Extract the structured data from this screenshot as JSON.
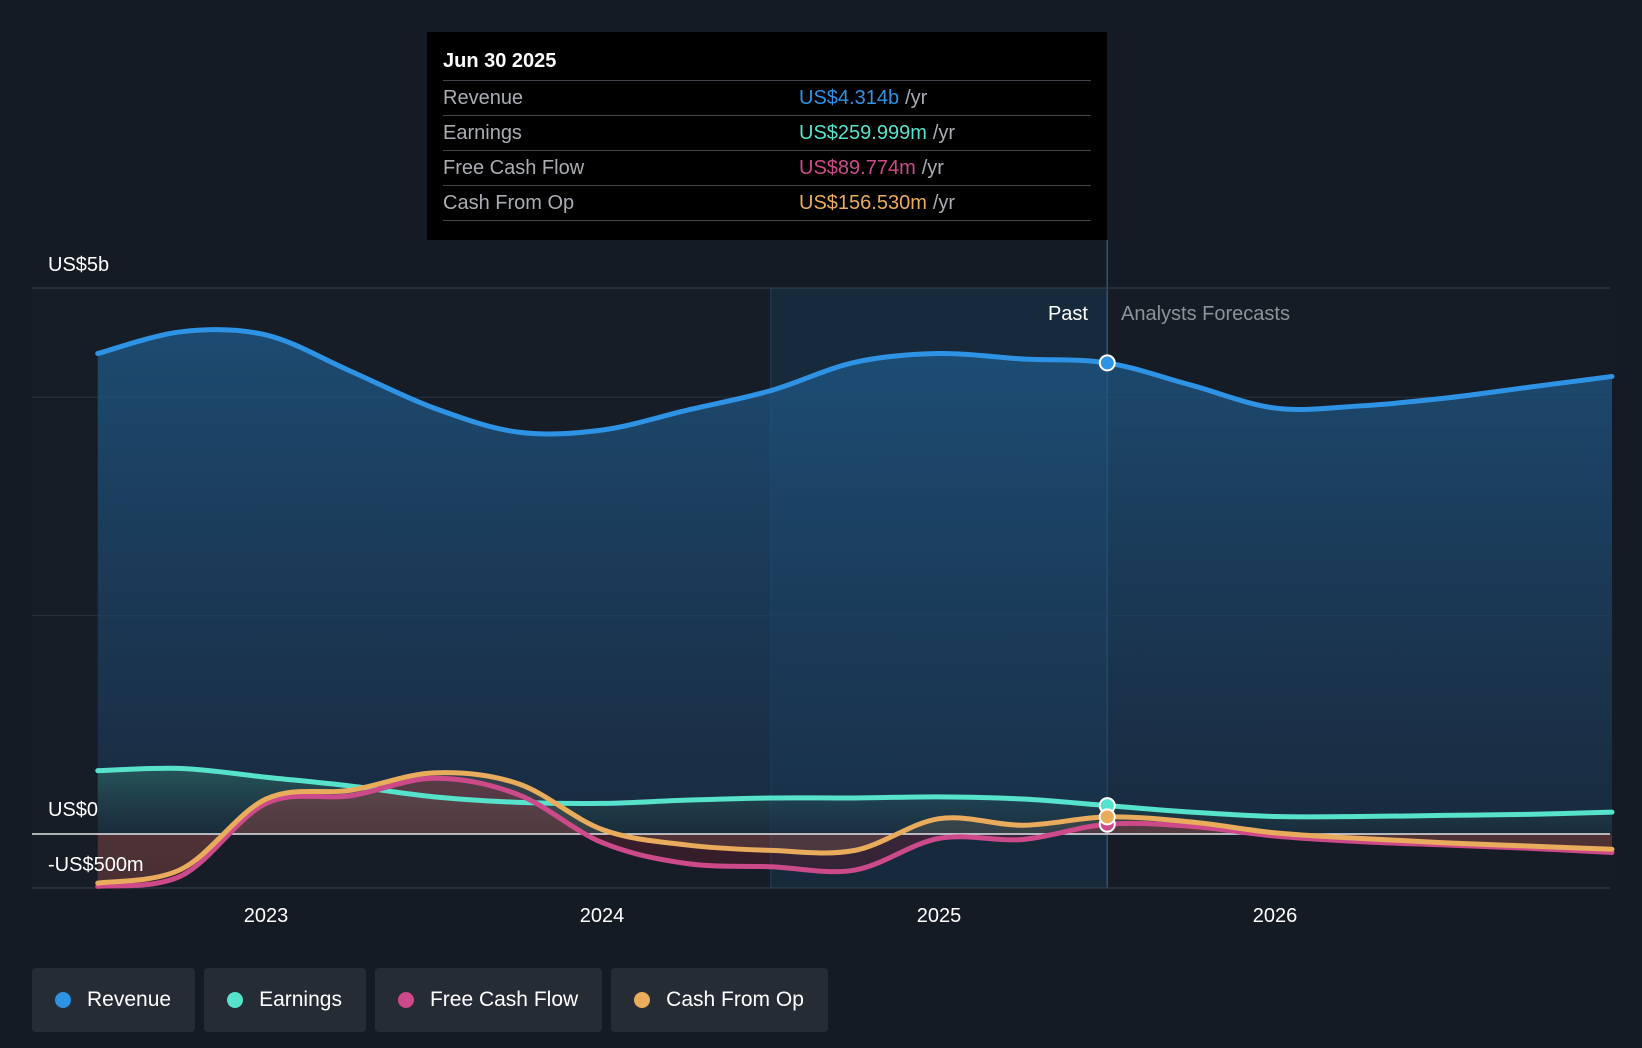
{
  "chart_data": {
    "type": "line",
    "title": "",
    "y_unit": "US$",
    "y_axis_labels": [
      "US$5b",
      "US$0",
      "-US$500m"
    ],
    "ylim": [
      -500,
      5000
    ],
    "x_ticks": [
      "2023",
      "2024",
      "2025",
      "2026"
    ],
    "period_labels": {
      "past": "Past",
      "forecast": "Analysts Forecasts"
    },
    "past_end": 2025.5,
    "highlight_start": 2024.5,
    "x_range": [
      2022.3,
      2027.0
    ],
    "series": [
      {
        "name": "Revenue",
        "color": "#2e93e4",
        "points": [
          [
            2022.5,
            4400
          ],
          [
            2022.75,
            4600
          ],
          [
            2023.0,
            4570
          ],
          [
            2023.25,
            4240
          ],
          [
            2023.5,
            3900
          ],
          [
            2023.75,
            3680
          ],
          [
            2024.0,
            3700
          ],
          [
            2024.25,
            3880
          ],
          [
            2024.5,
            4060
          ],
          [
            2024.75,
            4320
          ],
          [
            2025.0,
            4400
          ],
          [
            2025.25,
            4350
          ],
          [
            2025.5,
            4314
          ],
          [
            2025.75,
            4110
          ],
          [
            2026.0,
            3900
          ],
          [
            2026.25,
            3920
          ],
          [
            2026.5,
            3990
          ],
          [
            2026.75,
            4090
          ],
          [
            2027.0,
            4190
          ]
        ]
      },
      {
        "name": "Earnings",
        "color": "#57e2cc",
        "points": [
          [
            2022.5,
            580
          ],
          [
            2022.75,
            600
          ],
          [
            2023.0,
            520
          ],
          [
            2023.25,
            440
          ],
          [
            2023.5,
            340
          ],
          [
            2023.75,
            290
          ],
          [
            2024.0,
            280
          ],
          [
            2024.25,
            310
          ],
          [
            2024.5,
            330
          ],
          [
            2024.75,
            330
          ],
          [
            2025.0,
            340
          ],
          [
            2025.25,
            320
          ],
          [
            2025.5,
            260
          ],
          [
            2025.75,
            200
          ],
          [
            2026.0,
            160
          ],
          [
            2026.25,
            160
          ],
          [
            2026.5,
            170
          ],
          [
            2026.75,
            180
          ],
          [
            2027.0,
            200
          ]
        ]
      },
      {
        "name": "Free Cash Flow",
        "color": "#cc4a8a",
        "points": [
          [
            2022.5,
            -480
          ],
          [
            2022.75,
            -380
          ],
          [
            2023.0,
            280
          ],
          [
            2023.25,
            350
          ],
          [
            2023.5,
            510
          ],
          [
            2023.75,
            360
          ],
          [
            2024.0,
            -80
          ],
          [
            2024.25,
            -270
          ],
          [
            2024.5,
            -300
          ],
          [
            2024.75,
            -330
          ],
          [
            2025.0,
            -40
          ],
          [
            2025.25,
            -50
          ],
          [
            2025.5,
            89.774
          ],
          [
            2025.75,
            70
          ],
          [
            2026.0,
            -20
          ],
          [
            2026.25,
            -70
          ],
          [
            2026.5,
            -100
          ],
          [
            2026.75,
            -130
          ],
          [
            2027.0,
            -170
          ]
        ]
      },
      {
        "name": "Cash From Op",
        "color": "#e9ab5c",
        "points": [
          [
            2022.5,
            -450
          ],
          [
            2022.75,
            -320
          ],
          [
            2023.0,
            320
          ],
          [
            2023.25,
            400
          ],
          [
            2023.5,
            560
          ],
          [
            2023.75,
            460
          ],
          [
            2024.0,
            40
          ],
          [
            2024.25,
            -100
          ],
          [
            2024.5,
            -150
          ],
          [
            2024.75,
            -150
          ],
          [
            2025.0,
            140
          ],
          [
            2025.25,
            80
          ],
          [
            2025.5,
            156.53
          ],
          [
            2025.75,
            110
          ],
          [
            2026.0,
            10
          ],
          [
            2026.25,
            -40
          ],
          [
            2026.5,
            -80
          ],
          [
            2026.75,
            -110
          ],
          [
            2027.0,
            -140
          ]
        ]
      }
    ]
  },
  "tooltip": {
    "date": "Jun 30 2025",
    "unit": "/yr",
    "rows": [
      {
        "label": "Revenue",
        "value": "US$4.314b",
        "color": "#2e93e4"
      },
      {
        "label": "Earnings",
        "value": "US$259.999m",
        "color": "#57e2cc"
      },
      {
        "label": "Free Cash Flow",
        "value": "US$89.774m",
        "color": "#cc4a8a"
      },
      {
        "label": "Cash From Op",
        "value": "US$156.530m",
        "color": "#e9ab5c"
      }
    ]
  },
  "legend": {
    "items": [
      {
        "label": "Revenue",
        "color": "#2e93e4"
      },
      {
        "label": "Earnings",
        "color": "#57e2cc"
      },
      {
        "label": "Free Cash Flow",
        "color": "#cc4a8a"
      },
      {
        "label": "Cash From Op",
        "color": "#e9ab5c"
      }
    ]
  }
}
